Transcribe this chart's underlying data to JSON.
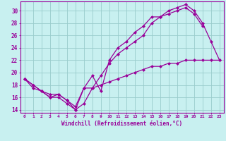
{
  "xlabel": "Windchill (Refroidissement éolien,°C)",
  "bg_color": "#c8f0f0",
  "line_color": "#990099",
  "grid_color": "#99cccc",
  "xlim": [
    -0.5,
    23.5
  ],
  "ylim": [
    13.5,
    31.5
  ],
  "xticks": [
    0,
    1,
    2,
    3,
    4,
    5,
    6,
    7,
    8,
    9,
    10,
    11,
    12,
    13,
    14,
    15,
    16,
    17,
    18,
    19,
    20,
    21,
    22,
    23
  ],
  "yticks": [
    14,
    16,
    18,
    20,
    22,
    24,
    26,
    28,
    30
  ],
  "line1_x": [
    0,
    1,
    2,
    3,
    4,
    5,
    6,
    7,
    8,
    9,
    10,
    11,
    12,
    13,
    14,
    15,
    16,
    17,
    18,
    19,
    20,
    21,
    22,
    23
  ],
  "line1_y": [
    19,
    18,
    17,
    16,
    16,
    15,
    14,
    17.5,
    19.5,
    17,
    22,
    24,
    25,
    26.5,
    27.5,
    29,
    29,
    30,
    30.5,
    31,
    30,
    28,
    25,
    22
  ],
  "line2_x": [
    0,
    1,
    2,
    3,
    4,
    5,
    6,
    7,
    8,
    9,
    10,
    11,
    12,
    13,
    14,
    15,
    16,
    17,
    18,
    19,
    20,
    21
  ],
  "line2_y": [
    19,
    18,
    17,
    16.5,
    16.5,
    15.5,
    14,
    15,
    17.5,
    19.5,
    21.5,
    23,
    24,
    25,
    26,
    28,
    29,
    29.5,
    30,
    30.5,
    29.5,
    27.5
  ],
  "line3_x": [
    0,
    1,
    2,
    3,
    4,
    5,
    6,
    7,
    8,
    9,
    10,
    11,
    12,
    13,
    14,
    15,
    16,
    17,
    18,
    19,
    20,
    21,
    22,
    23
  ],
  "line3_y": [
    19,
    17.5,
    17,
    16,
    16.5,
    15.5,
    14.5,
    17.5,
    17.5,
    18,
    18.5,
    19,
    19.5,
    20,
    20.5,
    21,
    21,
    21.5,
    21.5,
    22,
    22,
    22,
    22,
    22
  ]
}
